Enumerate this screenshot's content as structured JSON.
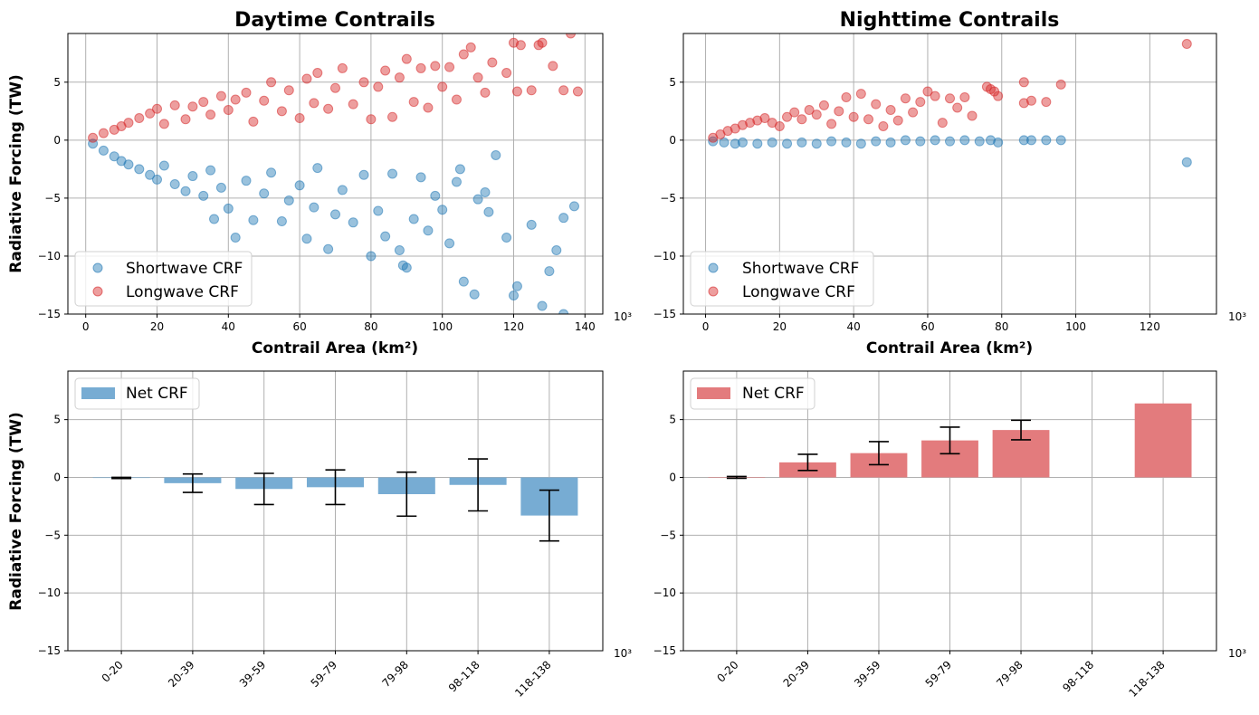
{
  "colors": {
    "shortwave": "#1f77b4",
    "longwave": "#d62728",
    "net_day": "#77acd3",
    "net_night": "#e37b7d"
  },
  "chart_data": [
    {
      "id": "day-scatter",
      "type": "scatter",
      "title": "Daytime Contrails",
      "xlabel": "Contrail Area (km²)",
      "ylabel": "Radiative Forcing (TW)",
      "x_offset_label": "10³",
      "xlim": [
        -5,
        145
      ],
      "ylim": [
        -15,
        9.2
      ],
      "xticks": [
        0,
        20,
        40,
        60,
        80,
        100,
        120,
        140
      ],
      "yticks": [
        -15,
        -10,
        -5,
        0,
        5
      ],
      "grid": true,
      "legend_position": "lower-left",
      "series": [
        {
          "name": "Shortwave CRF",
          "color_key": "shortwave",
          "points": [
            [
              2,
              -0.3
            ],
            [
              5,
              -0.9
            ],
            [
              8,
              -1.4
            ],
            [
              10,
              -1.8
            ],
            [
              12,
              -2.1
            ],
            [
              15,
              -2.5
            ],
            [
              18,
              -3.0
            ],
            [
              20,
              -3.4
            ],
            [
              22,
              -2.2
            ],
            [
              25,
              -3.8
            ],
            [
              28,
              -4.4
            ],
            [
              30,
              -3.1
            ],
            [
              33,
              -4.8
            ],
            [
              35,
              -2.6
            ],
            [
              36,
              -6.8
            ],
            [
              38,
              -4.1
            ],
            [
              40,
              -5.9
            ],
            [
              42,
              -8.4
            ],
            [
              45,
              -3.5
            ],
            [
              47,
              -6.9
            ],
            [
              50,
              -4.6
            ],
            [
              52,
              -2.8
            ],
            [
              55,
              -7.0
            ],
            [
              57,
              -5.2
            ],
            [
              60,
              -3.9
            ],
            [
              62,
              -8.5
            ],
            [
              64,
              -5.8
            ],
            [
              65,
              -2.4
            ],
            [
              68,
              -9.4
            ],
            [
              70,
              -6.4
            ],
            [
              72,
              -4.3
            ],
            [
              75,
              -7.1
            ],
            [
              78,
              -3.0
            ],
            [
              80,
              -10.0
            ],
            [
              82,
              -6.1
            ],
            [
              84,
              -8.3
            ],
            [
              86,
              -2.9
            ],
            [
              88,
              -9.5
            ],
            [
              89,
              -10.8
            ],
            [
              90,
              -11.0
            ],
            [
              92,
              -6.8
            ],
            [
              94,
              -3.2
            ],
            [
              96,
              -7.8
            ],
            [
              98,
              -4.8
            ],
            [
              100,
              -6.0
            ],
            [
              102,
              -8.9
            ],
            [
              104,
              -3.6
            ],
            [
              105,
              -2.5
            ],
            [
              106,
              -12.2
            ],
            [
              109,
              -13.3
            ],
            [
              110,
              -5.1
            ],
            [
              112,
              -4.5
            ],
            [
              113,
              -6.2
            ],
            [
              115,
              -1.3
            ],
            [
              118,
              -8.4
            ],
            [
              120,
              -13.4
            ],
            [
              121,
              -12.6
            ],
            [
              125,
              -7.3
            ],
            [
              128,
              -14.3
            ],
            [
              130,
              -11.3
            ],
            [
              132,
              -9.5
            ],
            [
              134,
              -6.7
            ],
            [
              137,
              -5.7
            ],
            [
              134,
              -15.0
            ]
          ]
        },
        {
          "name": "Longwave CRF",
          "color_key": "longwave",
          "points": [
            [
              2,
              0.2
            ],
            [
              5,
              0.6
            ],
            [
              8,
              0.9
            ],
            [
              10,
              1.2
            ],
            [
              12,
              1.5
            ],
            [
              15,
              1.9
            ],
            [
              18,
              2.3
            ],
            [
              20,
              2.7
            ],
            [
              22,
              1.4
            ],
            [
              25,
              3.0
            ],
            [
              28,
              1.8
            ],
            [
              30,
              2.9
            ],
            [
              33,
              3.3
            ],
            [
              35,
              2.2
            ],
            [
              38,
              3.8
            ],
            [
              40,
              2.6
            ],
            [
              42,
              3.5
            ],
            [
              45,
              4.1
            ],
            [
              47,
              1.6
            ],
            [
              50,
              3.4
            ],
            [
              52,
              5.0
            ],
            [
              55,
              2.5
            ],
            [
              57,
              4.3
            ],
            [
              60,
              1.9
            ],
            [
              62,
              5.3
            ],
            [
              64,
              3.2
            ],
            [
              65,
              5.8
            ],
            [
              68,
              2.7
            ],
            [
              70,
              4.5
            ],
            [
              72,
              6.2
            ],
            [
              75,
              3.1
            ],
            [
              78,
              5.0
            ],
            [
              80,
              1.8
            ],
            [
              82,
              4.6
            ],
            [
              84,
              6.0
            ],
            [
              86,
              2.0
            ],
            [
              88,
              5.4
            ],
            [
              90,
              7.0
            ],
            [
              92,
              3.3
            ],
            [
              94,
              6.2
            ],
            [
              96,
              2.8
            ],
            [
              98,
              6.4
            ],
            [
              100,
              4.6
            ],
            [
              102,
              6.3
            ],
            [
              104,
              3.5
            ],
            [
              106,
              7.4
            ],
            [
              108,
              8.0
            ],
            [
              110,
              5.4
            ],
            [
              112,
              4.1
            ],
            [
              114,
              6.7
            ],
            [
              118,
              5.8
            ],
            [
              120,
              8.4
            ],
            [
              121,
              4.2
            ],
            [
              122,
              8.2
            ],
            [
              125,
              4.3
            ],
            [
              127,
              8.2
            ],
            [
              128,
              8.4
            ],
            [
              131,
              6.4
            ],
            [
              134,
              4.3
            ],
            [
              136,
              9.2
            ],
            [
              138,
              4.2
            ]
          ]
        }
      ]
    },
    {
      "id": "night-scatter",
      "type": "scatter",
      "title": "Nighttime Contrails",
      "xlabel": "Contrail Area (km²)",
      "ylabel": "",
      "x_offset_label": "10³",
      "xlim": [
        -6,
        138
      ],
      "ylim": [
        -15,
        9.2
      ],
      "xticks": [
        0,
        20,
        40,
        60,
        80,
        100,
        120
      ],
      "yticks": [
        -15,
        -10,
        -5,
        0,
        5
      ],
      "grid": true,
      "legend_position": "lower-left",
      "series": [
        {
          "name": "Shortwave CRF",
          "color_key": "shortwave",
          "points": [
            [
              2,
              -0.1
            ],
            [
              5,
              -0.2
            ],
            [
              8,
              -0.3
            ],
            [
              10,
              -0.2
            ],
            [
              14,
              -0.3
            ],
            [
              18,
              -0.2
            ],
            [
              22,
              -0.3
            ],
            [
              26,
              -0.2
            ],
            [
              30,
              -0.3
            ],
            [
              34,
              -0.1
            ],
            [
              38,
              -0.2
            ],
            [
              42,
              -0.3
            ],
            [
              46,
              -0.1
            ],
            [
              50,
              -0.2
            ],
            [
              54,
              0.0
            ],
            [
              58,
              -0.1
            ],
            [
              62,
              0.0
            ],
            [
              66,
              -0.1
            ],
            [
              70,
              0.0
            ],
            [
              74,
              -0.1
            ],
            [
              77,
              0.0
            ],
            [
              79,
              -0.2
            ],
            [
              86,
              0.0
            ],
            [
              88,
              0.0
            ],
            [
              92,
              0.0
            ],
            [
              96,
              0.0
            ],
            [
              130,
              -1.9
            ]
          ]
        },
        {
          "name": "Longwave CRF",
          "color_key": "longwave",
          "points": [
            [
              2,
              0.2
            ],
            [
              4,
              0.5
            ],
            [
              6,
              0.8
            ],
            [
              8,
              1.0
            ],
            [
              10,
              1.3
            ],
            [
              12,
              1.5
            ],
            [
              14,
              1.7
            ],
            [
              16,
              1.9
            ],
            [
              18,
              1.5
            ],
            [
              20,
              1.2
            ],
            [
              22,
              2.0
            ],
            [
              24,
              2.4
            ],
            [
              26,
              1.8
            ],
            [
              28,
              2.6
            ],
            [
              30,
              2.2
            ],
            [
              32,
              3.0
            ],
            [
              34,
              1.4
            ],
            [
              36,
              2.5
            ],
            [
              38,
              3.7
            ],
            [
              40,
              2.0
            ],
            [
              42,
              4.0
            ],
            [
              44,
              1.8
            ],
            [
              46,
              3.1
            ],
            [
              48,
              1.2
            ],
            [
              50,
              2.6
            ],
            [
              52,
              1.7
            ],
            [
              54,
              3.6
            ],
            [
              56,
              2.4
            ],
            [
              58,
              3.3
            ],
            [
              60,
              4.2
            ],
            [
              62,
              3.8
            ],
            [
              64,
              1.5
            ],
            [
              66,
              3.6
            ],
            [
              68,
              2.8
            ],
            [
              70,
              3.7
            ],
            [
              72,
              2.1
            ],
            [
              76,
              4.6
            ],
            [
              77,
              4.4
            ],
            [
              78,
              4.2
            ],
            [
              79,
              3.8
            ],
            [
              86,
              5.0
            ],
            [
              86,
              3.2
            ],
            [
              88,
              3.4
            ],
            [
              92,
              3.3
            ],
            [
              96,
              4.8
            ],
            [
              130,
              8.3
            ]
          ]
        }
      ]
    },
    {
      "id": "day-net",
      "type": "bar",
      "title": "",
      "xlabel": "",
      "ylabel": "Radiative Forcing (TW)",
      "x_offset_label": "10³",
      "ylim": [
        -15,
        9.2
      ],
      "yticks": [
        -15,
        -10,
        -5,
        0,
        5
      ],
      "grid": true,
      "legend_position": "upper-left",
      "categories": [
        "0-20",
        "20-39",
        "39-59",
        "59-79",
        "79-98",
        "98-118",
        "118-138"
      ],
      "series": [
        {
          "name": "Net CRF",
          "color_key": "net_day",
          "values": [
            -0.05,
            -0.5,
            -1.0,
            -0.85,
            -1.45,
            -0.65,
            -3.3
          ],
          "errors": [
            0.05,
            0.8,
            1.35,
            1.5,
            1.9,
            2.25,
            2.2
          ]
        }
      ]
    },
    {
      "id": "night-net",
      "type": "bar",
      "title": "",
      "xlabel": "",
      "ylabel": "",
      "x_offset_label": "10³",
      "ylim": [
        -15,
        9.2
      ],
      "yticks": [
        -15,
        -10,
        -5,
        0,
        5
      ],
      "grid": true,
      "legend_position": "upper-left",
      "categories": [
        "0-20",
        "20-39",
        "39-59",
        "59-79",
        "79-98",
        "98-118",
        "118-138"
      ],
      "series": [
        {
          "name": "Net CRF",
          "color_key": "net_night",
          "values": [
            0.0,
            1.3,
            2.1,
            3.2,
            4.1,
            null,
            6.4
          ],
          "errors": [
            0.08,
            0.7,
            1.0,
            1.15,
            0.85,
            null,
            null
          ]
        }
      ]
    }
  ]
}
